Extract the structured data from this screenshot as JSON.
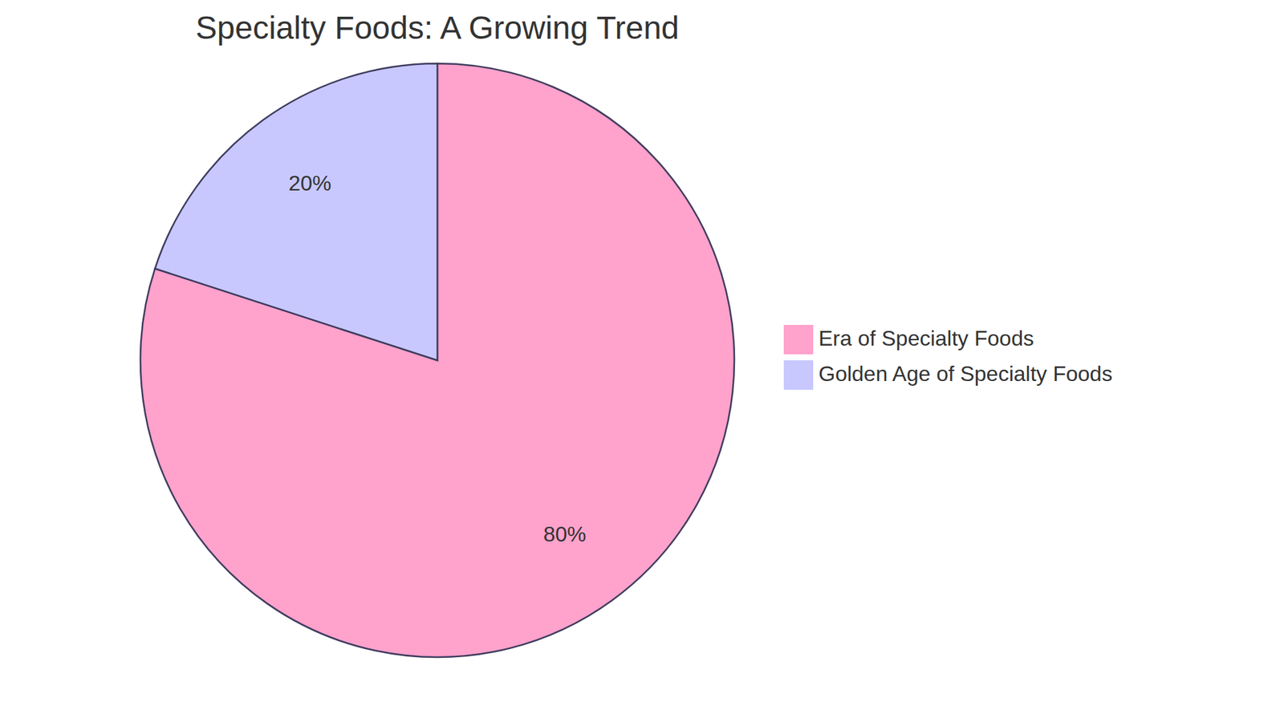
{
  "chart_data": {
    "type": "pie",
    "title": "Specialty Foods: A Growing Trend",
    "categories": [
      "Era of Specialty Foods",
      "Golden Age of Specialty Foods"
    ],
    "values": [
      80,
      20
    ],
    "value_labels": [
      "80%",
      "20%"
    ],
    "colors": [
      "#ffa2cc",
      "#c8c8ff"
    ],
    "data_labels": true,
    "legend": "right"
  }
}
